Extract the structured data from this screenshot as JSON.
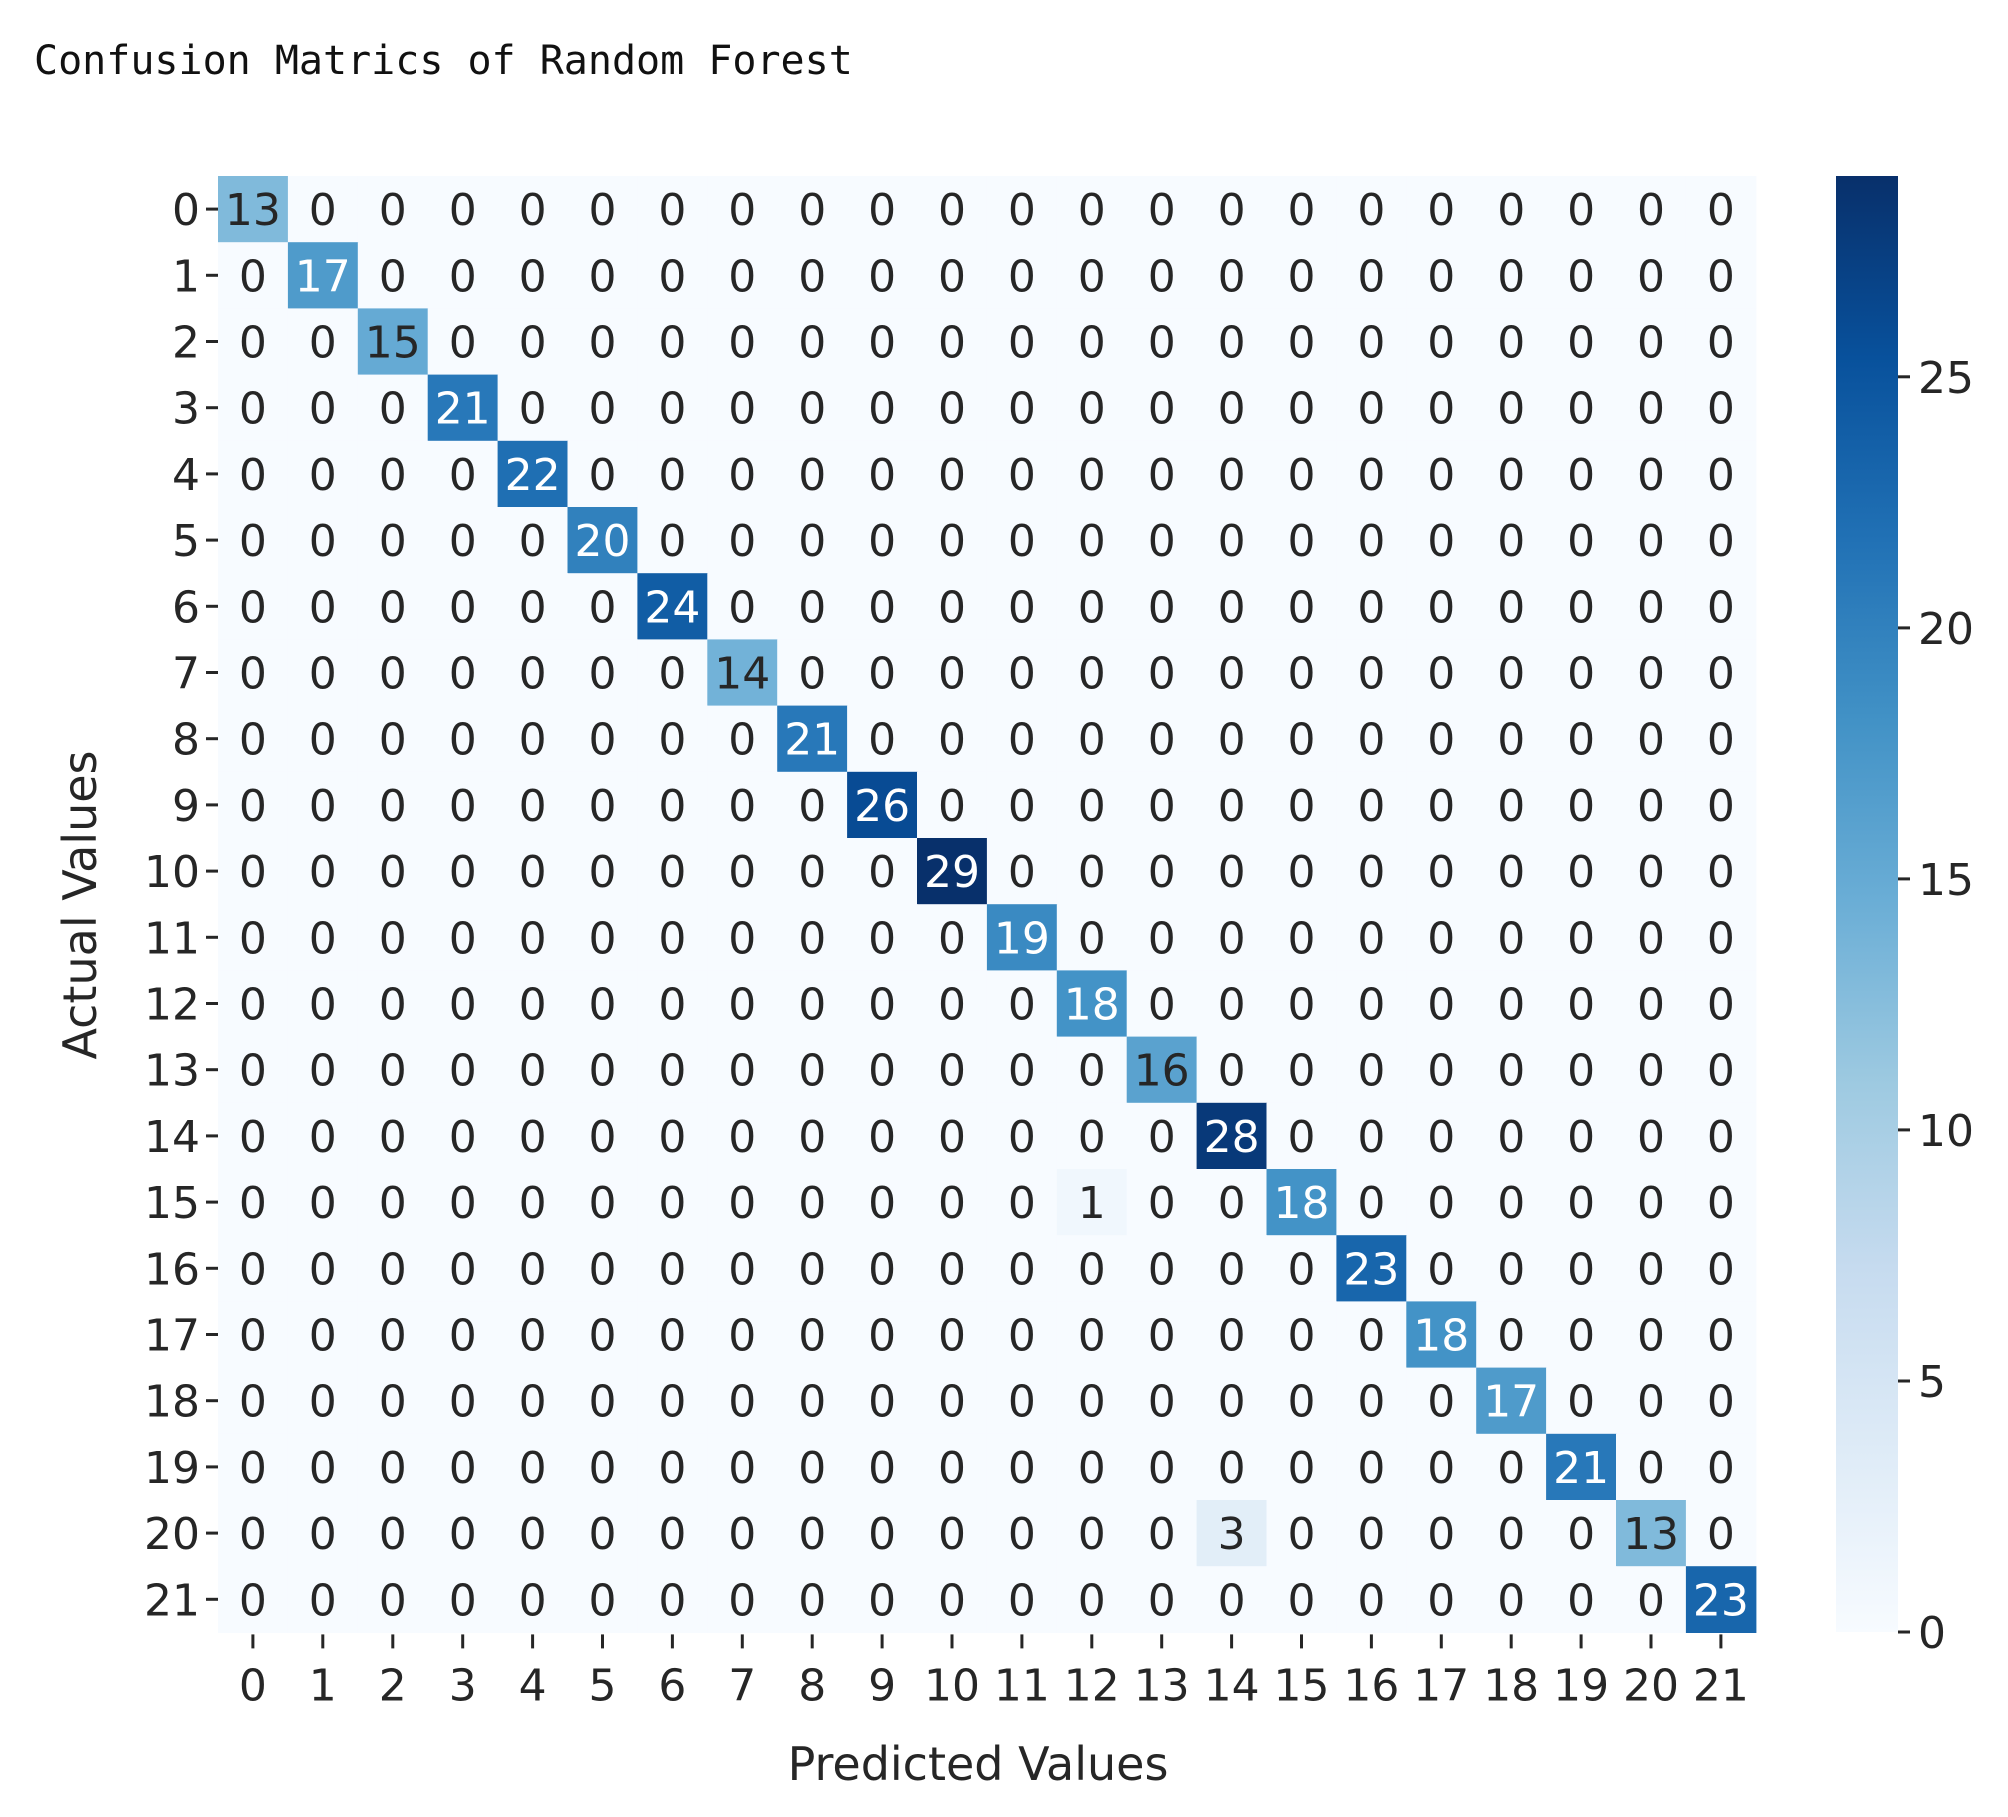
{
  "title": "Confusion Matrics of Random Forest",
  "chart_data": {
    "type": "heatmap",
    "xlabel": "Predicted Values",
    "ylabel": "Actual Values",
    "x_categories": [
      "0",
      "1",
      "2",
      "3",
      "4",
      "5",
      "6",
      "7",
      "8",
      "9",
      "10",
      "11",
      "12",
      "13",
      "14",
      "15",
      "16",
      "17",
      "18",
      "19",
      "20",
      "21"
    ],
    "y_categories": [
      "0",
      "1",
      "2",
      "3",
      "4",
      "5",
      "6",
      "7",
      "8",
      "9",
      "10",
      "11",
      "12",
      "13",
      "14",
      "15",
      "16",
      "17",
      "18",
      "19",
      "20",
      "21"
    ],
    "values": [
      [
        13,
        0,
        0,
        0,
        0,
        0,
        0,
        0,
        0,
        0,
        0,
        0,
        0,
        0,
        0,
        0,
        0,
        0,
        0,
        0,
        0,
        0
      ],
      [
        0,
        17,
        0,
        0,
        0,
        0,
        0,
        0,
        0,
        0,
        0,
        0,
        0,
        0,
        0,
        0,
        0,
        0,
        0,
        0,
        0,
        0
      ],
      [
        0,
        0,
        15,
        0,
        0,
        0,
        0,
        0,
        0,
        0,
        0,
        0,
        0,
        0,
        0,
        0,
        0,
        0,
        0,
        0,
        0,
        0
      ],
      [
        0,
        0,
        0,
        21,
        0,
        0,
        0,
        0,
        0,
        0,
        0,
        0,
        0,
        0,
        0,
        0,
        0,
        0,
        0,
        0,
        0,
        0
      ],
      [
        0,
        0,
        0,
        0,
        22,
        0,
        0,
        0,
        0,
        0,
        0,
        0,
        0,
        0,
        0,
        0,
        0,
        0,
        0,
        0,
        0,
        0
      ],
      [
        0,
        0,
        0,
        0,
        0,
        20,
        0,
        0,
        0,
        0,
        0,
        0,
        0,
        0,
        0,
        0,
        0,
        0,
        0,
        0,
        0,
        0
      ],
      [
        0,
        0,
        0,
        0,
        0,
        0,
        24,
        0,
        0,
        0,
        0,
        0,
        0,
        0,
        0,
        0,
        0,
        0,
        0,
        0,
        0,
        0
      ],
      [
        0,
        0,
        0,
        0,
        0,
        0,
        0,
        14,
        0,
        0,
        0,
        0,
        0,
        0,
        0,
        0,
        0,
        0,
        0,
        0,
        0,
        0
      ],
      [
        0,
        0,
        0,
        0,
        0,
        0,
        0,
        0,
        21,
        0,
        0,
        0,
        0,
        0,
        0,
        0,
        0,
        0,
        0,
        0,
        0,
        0
      ],
      [
        0,
        0,
        0,
        0,
        0,
        0,
        0,
        0,
        0,
        26,
        0,
        0,
        0,
        0,
        0,
        0,
        0,
        0,
        0,
        0,
        0,
        0
      ],
      [
        0,
        0,
        0,
        0,
        0,
        0,
        0,
        0,
        0,
        0,
        29,
        0,
        0,
        0,
        0,
        0,
        0,
        0,
        0,
        0,
        0,
        0
      ],
      [
        0,
        0,
        0,
        0,
        0,
        0,
        0,
        0,
        0,
        0,
        0,
        19,
        0,
        0,
        0,
        0,
        0,
        0,
        0,
        0,
        0,
        0
      ],
      [
        0,
        0,
        0,
        0,
        0,
        0,
        0,
        0,
        0,
        0,
        0,
        0,
        18,
        0,
        0,
        0,
        0,
        0,
        0,
        0,
        0,
        0
      ],
      [
        0,
        0,
        0,
        0,
        0,
        0,
        0,
        0,
        0,
        0,
        0,
        0,
        0,
        16,
        0,
        0,
        0,
        0,
        0,
        0,
        0,
        0
      ],
      [
        0,
        0,
        0,
        0,
        0,
        0,
        0,
        0,
        0,
        0,
        0,
        0,
        0,
        0,
        28,
        0,
        0,
        0,
        0,
        0,
        0,
        0
      ],
      [
        0,
        0,
        0,
        0,
        0,
        0,
        0,
        0,
        0,
        0,
        0,
        0,
        1,
        0,
        0,
        18,
        0,
        0,
        0,
        0,
        0,
        0
      ],
      [
        0,
        0,
        0,
        0,
        0,
        0,
        0,
        0,
        0,
        0,
        0,
        0,
        0,
        0,
        0,
        0,
        23,
        0,
        0,
        0,
        0,
        0
      ],
      [
        0,
        0,
        0,
        0,
        0,
        0,
        0,
        0,
        0,
        0,
        0,
        0,
        0,
        0,
        0,
        0,
        0,
        18,
        0,
        0,
        0,
        0
      ],
      [
        0,
        0,
        0,
        0,
        0,
        0,
        0,
        0,
        0,
        0,
        0,
        0,
        0,
        0,
        0,
        0,
        0,
        0,
        17,
        0,
        0,
        0
      ],
      [
        0,
        0,
        0,
        0,
        0,
        0,
        0,
        0,
        0,
        0,
        0,
        0,
        0,
        0,
        0,
        0,
        0,
        0,
        0,
        21,
        0,
        0
      ],
      [
        0,
        0,
        0,
        0,
        0,
        0,
        0,
        0,
        0,
        0,
        0,
        0,
        0,
        0,
        3,
        0,
        0,
        0,
        0,
        0,
        13,
        0
      ],
      [
        0,
        0,
        0,
        0,
        0,
        0,
        0,
        0,
        0,
        0,
        0,
        0,
        0,
        0,
        0,
        0,
        0,
        0,
        0,
        0,
        0,
        23
      ]
    ],
    "colorscale": "Blues",
    "color_range": [
      0,
      29
    ],
    "colorbar_ticks": [
      0,
      5,
      10,
      15,
      20,
      25
    ],
    "colorbar_tick_labels": [
      "0",
      "5",
      "10",
      "15",
      "20",
      "25"
    ],
    "grid": false,
    "legend": "colorbar-right"
  }
}
